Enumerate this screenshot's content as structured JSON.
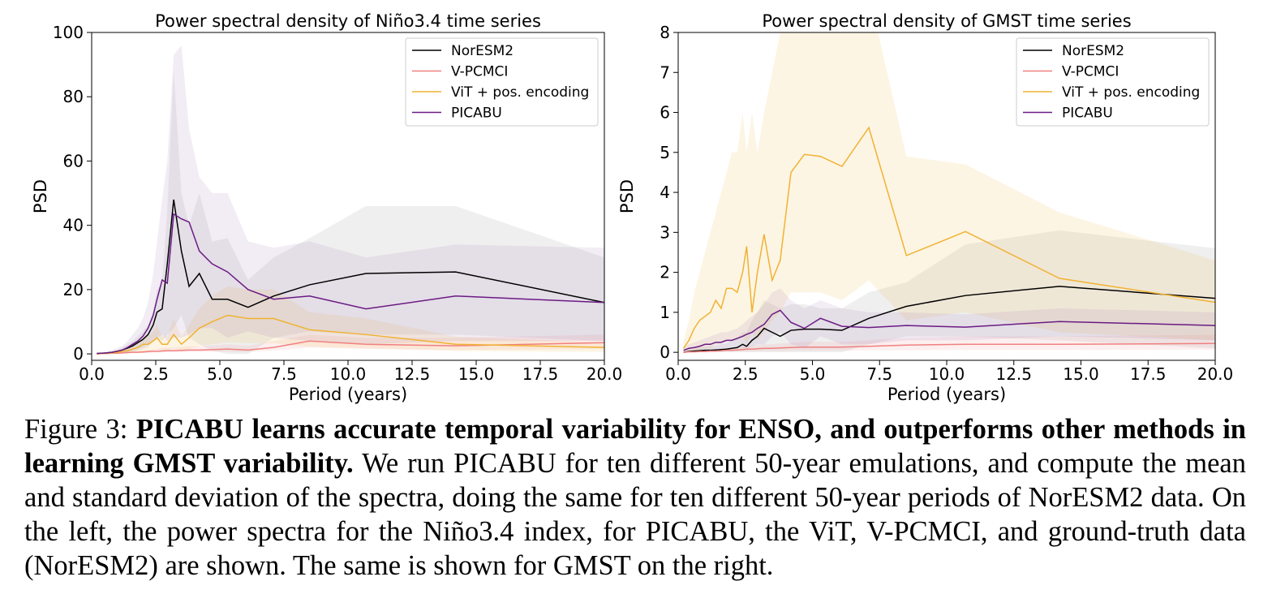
{
  "chart_data": [
    {
      "type": "line",
      "title": "Power spectral density of Niño3.4 time series",
      "xlabel": "Period (years)",
      "ylabel": "PSD",
      "xlim": [
        0,
        20
      ],
      "ylim": [
        -2,
        100
      ],
      "xticks": [
        {
          "value": 0,
          "label": "0.0"
        },
        {
          "value": 2.5,
          "label": "2.5"
        },
        {
          "value": 5,
          "label": "5.0"
        },
        {
          "value": 7.5,
          "label": "7.5"
        },
        {
          "value": 10,
          "label": "10.0"
        },
        {
          "value": 12.5,
          "label": "12.5"
        },
        {
          "value": 15,
          "label": "15.0"
        },
        {
          "value": 17.5,
          "label": "17.5"
        },
        {
          "value": 20,
          "label": "20.0"
        }
      ],
      "yticks": [
        0,
        20,
        40,
        60,
        80,
        100
      ],
      "legend": "upper right",
      "x": [
        0.2,
        0.4,
        0.6,
        0.8,
        1.0,
        1.2,
        1.4,
        1.6,
        1.8,
        2.0,
        2.2,
        2.4,
        2.55,
        2.75,
        2.95,
        3.2,
        3.5,
        3.8,
        4.2,
        4.7,
        5.3,
        6.1,
        7.1,
        8.5,
        10.7,
        14.2,
        20
      ],
      "series": [
        {
          "name": "NorESM2",
          "color": "#000000",
          "band_color": "#808080",
          "values": [
            0.1,
            0.2,
            0.3,
            0.5,
            0.8,
            1.2,
            1.8,
            2.5,
            3.5,
            4.5,
            6,
            9,
            13,
            14,
            28,
            48,
            32,
            21,
            25,
            17,
            17,
            14.5,
            18,
            21.5,
            25,
            25.5,
            16
          ],
          "upper": [
            0.2,
            0.3,
            0.5,
            0.8,
            1.2,
            2,
            3,
            4,
            5.5,
            7,
            9,
            13,
            20,
            22,
            45,
            88,
            50,
            40,
            50,
            35,
            36,
            23,
            30,
            36,
            46,
            46,
            30
          ],
          "lower": [
            0,
            0,
            0.1,
            0.2,
            0.3,
            0.4,
            0.6,
            0.8,
            1,
            1.5,
            2,
            4,
            5,
            4,
            6,
            8,
            12,
            5,
            3,
            1,
            0,
            0,
            5,
            7,
            6,
            6,
            4
          ]
        },
        {
          "name": "V-PCMCI",
          "color": "#f08080",
          "band_color": "#f08080",
          "values": [
            0,
            0.1,
            0.1,
            0.2,
            0.2,
            0.3,
            0.4,
            0.5,
            0.5,
            0.6,
            0.7,
            0.8,
            0.8,
            0.9,
            1.0,
            1.0,
            1.1,
            1.2,
            1.2,
            1.3,
            1.5,
            1.2,
            2,
            4,
            3,
            2.5,
            3.5
          ],
          "upper": [
            0,
            0.2,
            0.3,
            0.4,
            0.5,
            0.6,
            0.8,
            1,
            1,
            1.2,
            1.3,
            1.5,
            1.6,
            1.8,
            2,
            2,
            2.2,
            2.4,
            2.4,
            2.6,
            3,
            2.5,
            4,
            6,
            5,
            5,
            6
          ],
          "lower": [
            0,
            0,
            0,
            0.1,
            0.1,
            0.1,
            0.2,
            0.2,
            0.2,
            0.3,
            0.3,
            0.4,
            0.4,
            0.4,
            0.5,
            0.5,
            0.5,
            0.6,
            0.6,
            0.6,
            0.7,
            0.6,
            1,
            2,
            1.5,
            1.2,
            1.5
          ]
        },
        {
          "name": "ViT + pos. encoding",
          "color": "#f0b232",
          "band_color": "#f0b232",
          "values": [
            0,
            0.1,
            0.2,
            0.3,
            0.5,
            0.8,
            1,
            1.5,
            2,
            3,
            3,
            4,
            5,
            3,
            3,
            6,
            3,
            5,
            8,
            10,
            12,
            11,
            11,
            7.5,
            6,
            3,
            2
          ],
          "upper": [
            0.1,
            0.2,
            0.4,
            0.6,
            0.9,
            1.4,
            1.8,
            2.7,
            3.6,
            5.4,
            5.4,
            7,
            9,
            5.4,
            5.4,
            11,
            5.4,
            9,
            14,
            18,
            21,
            20,
            20,
            13,
            11,
            5.4,
            3.6
          ],
          "lower": [
            0,
            0,
            0,
            0.1,
            0.1,
            0.2,
            0.3,
            0.4,
            0.6,
            0.9,
            0.9,
            1.2,
            1.5,
            0.9,
            0.9,
            1.8,
            0.9,
            1.5,
            2.4,
            3,
            3.6,
            3.3,
            3.3,
            2.2,
            1.8,
            0.9,
            0.6
          ]
        },
        {
          "name": "PICABU",
          "color": "#6a1b83",
          "band_color": "#9b6bb5",
          "values": [
            0.1,
            0.2,
            0.3,
            0.5,
            0.8,
            1.2,
            2,
            3,
            4,
            5.5,
            8,
            12,
            17,
            23,
            22,
            43.5,
            42,
            41,
            32,
            28,
            25.5,
            20,
            17,
            18,
            14,
            18,
            16
          ],
          "upper": [
            0.3,
            0.5,
            0.8,
            1.2,
            1.8,
            2.5,
            4,
            6,
            8,
            11,
            16,
            25,
            35,
            48,
            60,
            93,
            96,
            70,
            55,
            50,
            50,
            35,
            33,
            35,
            30,
            34,
            33
          ],
          "lower": [
            0,
            0,
            0,
            0.1,
            0.2,
            0.4,
            0.6,
            1,
            1.5,
            2,
            3,
            4,
            5,
            6,
            4,
            5,
            5,
            6,
            8,
            8,
            5,
            7,
            5,
            4,
            3,
            4,
            4
          ]
        }
      ]
    },
    {
      "type": "line",
      "title": "Power spectral density of GMST time series",
      "xlabel": "Period (years)",
      "ylabel": "PSD",
      "xlim": [
        0,
        20
      ],
      "ylim": [
        -0.2,
        8
      ],
      "xticks": [
        {
          "value": 0,
          "label": "0.0"
        },
        {
          "value": 2.5,
          "label": "2.5"
        },
        {
          "value": 5,
          "label": "5.0"
        },
        {
          "value": 7.5,
          "label": "7.5"
        },
        {
          "value": 10,
          "label": "10.0"
        },
        {
          "value": 12.5,
          "label": "12.5"
        },
        {
          "value": 15,
          "label": "15.0"
        },
        {
          "value": 17.5,
          "label": "17.5"
        },
        {
          "value": 20,
          "label": "20.0"
        }
      ],
      "yticks": [
        0,
        1,
        2,
        3,
        4,
        5,
        6,
        7,
        8
      ],
      "legend": "upper right",
      "x": [
        0.2,
        0.4,
        0.6,
        0.8,
        1.0,
        1.2,
        1.4,
        1.6,
        1.8,
        2.0,
        2.2,
        2.4,
        2.55,
        2.75,
        2.95,
        3.2,
        3.5,
        3.8,
        4.2,
        4.7,
        5.3,
        6.1,
        7.1,
        8.5,
        10.7,
        14.2,
        20
      ],
      "series": [
        {
          "name": "NorESM2",
          "color": "#000000",
          "band_color": "#808080",
          "values": [
            0,
            0.02,
            0.03,
            0.04,
            0.05,
            0.05,
            0.06,
            0.07,
            0.08,
            0.1,
            0.12,
            0.2,
            0.15,
            0.3,
            0.4,
            0.6,
            0.5,
            0.4,
            0.55,
            0.58,
            0.58,
            0.55,
            0.85,
            1.15,
            1.42,
            1.65,
            1.35
          ],
          "upper": [
            0.05,
            0.08,
            0.1,
            0.12,
            0.14,
            0.15,
            0.17,
            0.2,
            0.22,
            0.3,
            0.35,
            0.5,
            0.5,
            0.8,
            1,
            1.3,
            1.2,
            1.1,
            1.2,
            1.2,
            1.1,
            1.1,
            1.5,
            1.75,
            2.7,
            3.05,
            2.6
          ],
          "lower": [
            0,
            0,
            0,
            0,
            0,
            0,
            0,
            0,
            0,
            0,
            0,
            0,
            0,
            0,
            0,
            0,
            0,
            0,
            0,
            0,
            0,
            0,
            0.2,
            0.4,
            0.4,
            0.3,
            0.1
          ]
        },
        {
          "name": "V-PCMCI",
          "color": "#f08080",
          "band_color": "#f08080",
          "values": [
            0,
            0.01,
            0.01,
            0.02,
            0.02,
            0.03,
            0.03,
            0.04,
            0.05,
            0.05,
            0.06,
            0.07,
            0.08,
            0.08,
            0.09,
            0.1,
            0.1,
            0.11,
            0.12,
            0.13,
            0.13,
            0.13,
            0.15,
            0.18,
            0.2,
            0.2,
            0.22
          ],
          "upper": [
            0,
            0.02,
            0.02,
            0.04,
            0.04,
            0.06,
            0.06,
            0.08,
            0.1,
            0.1,
            0.12,
            0.14,
            0.16,
            0.16,
            0.18,
            0.2,
            0.2,
            0.22,
            0.24,
            0.26,
            0.26,
            0.26,
            0.3,
            0.36,
            0.4,
            0.4,
            0.44
          ],
          "lower": [
            0,
            0,
            0,
            0.01,
            0.01,
            0.01,
            0.01,
            0.01,
            0.02,
            0.02,
            0.02,
            0.02,
            0.02,
            0.02,
            0.03,
            0.03,
            0.03,
            0.03,
            0.04,
            0.04,
            0.04,
            0.04,
            0.05,
            0.05,
            0.06,
            0.06,
            0.07
          ]
        },
        {
          "name": "ViT + pos. encoding",
          "color": "#f0b232",
          "band_color": "#f0b232",
          "values": [
            0.1,
            0.3,
            0.6,
            0.8,
            0.9,
            1.0,
            1.3,
            1.1,
            1.6,
            1.6,
            1.5,
            2.0,
            2.65,
            1.0,
            2.0,
            2.95,
            1.8,
            2.3,
            4.5,
            4.95,
            4.9,
            4.65,
            5.62,
            2.42,
            3.02,
            1.85,
            1.25
          ],
          "upper": [
            0.3,
            0.8,
            1.5,
            2,
            2.5,
            3,
            3.5,
            4,
            4.5,
            5,
            5,
            6,
            5,
            6,
            5,
            6,
            7,
            8,
            9,
            9,
            9,
            8.5,
            9,
            4.9,
            4.7,
            3.5,
            2.3
          ],
          "lower": [
            0,
            0,
            0,
            0,
            0.1,
            0.1,
            0.2,
            0.2,
            0.3,
            0.3,
            0.3,
            0.4,
            0.2,
            0.5,
            0.3,
            0.5,
            0.8,
            1,
            1.5,
            1.5,
            1.5,
            1.3,
            1.8,
            0.8,
            1,
            0.5,
            0.3
          ]
        },
        {
          "name": "PICABU",
          "color": "#6a1b83",
          "band_color": "#9b6bb5",
          "values": [
            0.05,
            0.1,
            0.12,
            0.15,
            0.2,
            0.2,
            0.25,
            0.25,
            0.3,
            0.3,
            0.35,
            0.4,
            0.45,
            0.5,
            0.6,
            0.7,
            0.95,
            1.05,
            0.75,
            0.6,
            0.85,
            0.65,
            0.62,
            0.67,
            0.63,
            0.77,
            0.67
          ],
          "upper": [
            0.1,
            0.2,
            0.25,
            0.3,
            0.35,
            0.4,
            0.45,
            0.5,
            0.5,
            0.55,
            0.6,
            0.7,
            0.8,
            0.9,
            1,
            1.2,
            1.5,
            1.6,
            1.3,
            1.1,
            1.3,
            1.1,
            1.0,
            1.0,
            0.95,
            1.1,
            1.0
          ],
          "lower": [
            0,
            0,
            0,
            0,
            0.05,
            0.05,
            0.05,
            0.05,
            0.1,
            0.1,
            0.1,
            0.1,
            0.1,
            0.15,
            0.2,
            0.2,
            0.4,
            0.5,
            0.2,
            0.1,
            0.4,
            0.2,
            0.2,
            0.3,
            0.3,
            0.4,
            0.3
          ]
        }
      ]
    }
  ],
  "caption": {
    "label": "Figure 3:",
    "headline": "PICABU learns accurate temporal variability for ENSO, and outperforms other methods in learning GMST variability.",
    "body": "We run PICABU for ten different 50-year emulations, and compute the mean and standard deviation of the spectra, doing the same for ten different 50-year periods of NorESM2 data. On the left, the power spectra for the Niño3.4 index, for PICABU, the ViT, V-PCMCI, and ground-truth data (NorESM2) are shown. The same is shown for GMST on the right."
  }
}
